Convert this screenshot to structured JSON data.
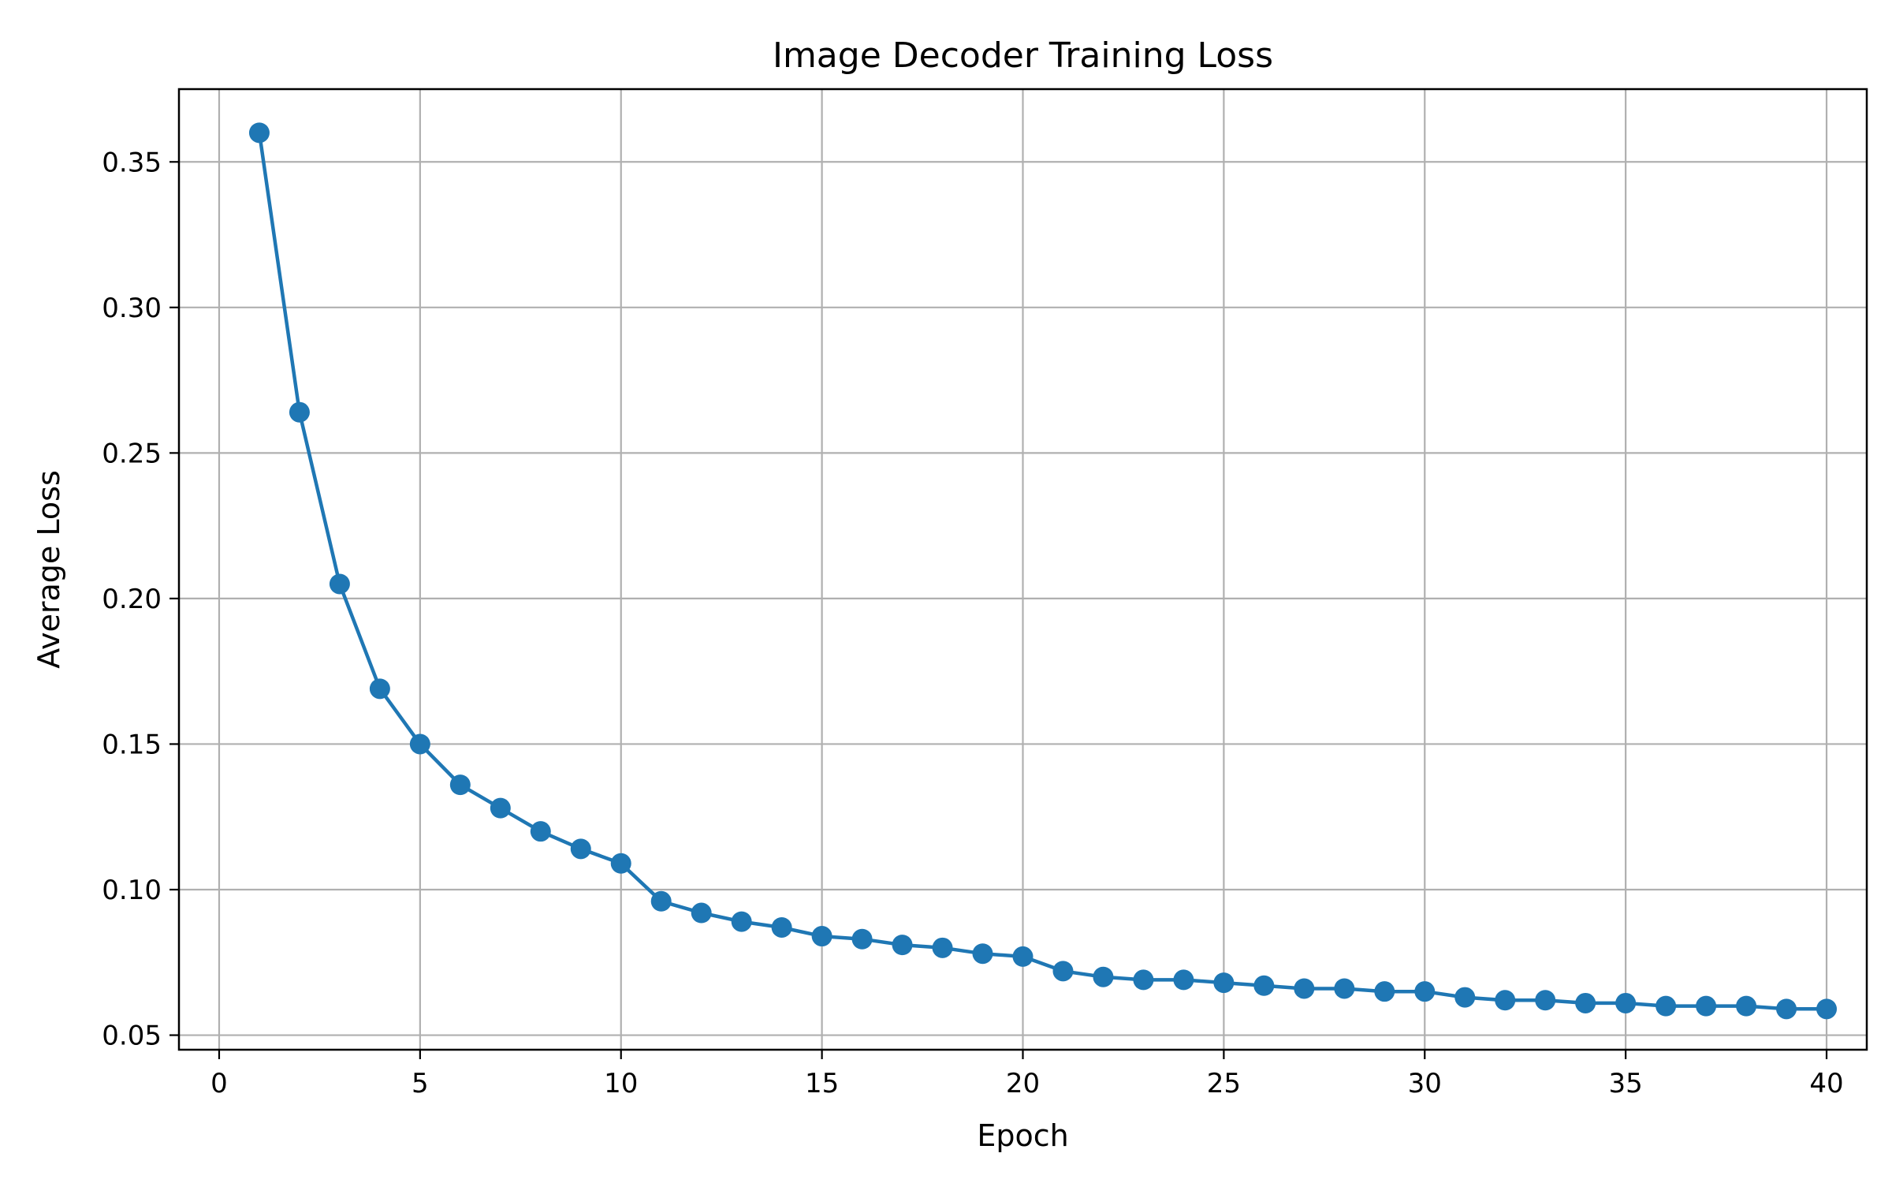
{
  "chart_data": {
    "type": "line",
    "title": "Image Decoder Training Loss",
    "xlabel": "Epoch",
    "ylabel": "Average Loss",
    "xlim": [
      -1,
      41
    ],
    "ylim": [
      0.045,
      0.375
    ],
    "xticks": [
      0,
      5,
      10,
      15,
      20,
      25,
      30,
      35,
      40
    ],
    "yticks": [
      0.05,
      0.1,
      0.15,
      0.2,
      0.25,
      0.3,
      0.35
    ],
    "ytick_labels": [
      "0.05",
      "0.10",
      "0.15",
      "0.20",
      "0.25",
      "0.30",
      "0.35"
    ],
    "grid": true,
    "legend": "none",
    "colors": {
      "series": "#1f77b4",
      "grid": "#b0b0b0",
      "axes": "#000000"
    },
    "series": [
      {
        "marker": "circle",
        "x": [
          1,
          2,
          3,
          4,
          5,
          6,
          7,
          8,
          9,
          10,
          11,
          12,
          13,
          14,
          15,
          16,
          17,
          18,
          19,
          20,
          21,
          22,
          23,
          24,
          25,
          26,
          27,
          28,
          29,
          30,
          31,
          32,
          33,
          34,
          35,
          36,
          37,
          38,
          39,
          40
        ],
        "y": [
          0.36,
          0.264,
          0.205,
          0.169,
          0.15,
          0.136,
          0.128,
          0.12,
          0.114,
          0.109,
          0.096,
          0.092,
          0.089,
          0.087,
          0.084,
          0.083,
          0.081,
          0.08,
          0.078,
          0.077,
          0.072,
          0.07,
          0.069,
          0.069,
          0.068,
          0.067,
          0.066,
          0.066,
          0.065,
          0.065,
          0.063,
          0.062,
          0.062,
          0.061,
          0.061,
          0.06,
          0.06,
          0.06,
          0.059,
          0.059
        ]
      }
    ]
  }
}
